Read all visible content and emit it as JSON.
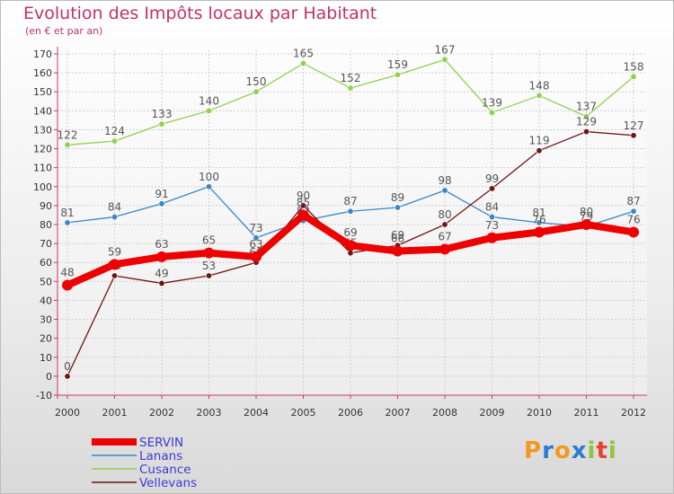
{
  "title": "Evolution des Impôts locaux par Habitant",
  "subtitle": "(en € et par an)",
  "brand": {
    "letters": [
      "P",
      "r",
      "o",
      "x",
      "i",
      "t",
      "i"
    ],
    "colors": [
      "#f39a1e",
      "#2e7ad1",
      "#f39a1e",
      "#2e7ad1",
      "#8cc63e",
      "#e8402f",
      "#8cc63e"
    ]
  },
  "chart_data": {
    "type": "line",
    "categories": [
      "2000",
      "2001",
      "2002",
      "2003",
      "2004",
      "2005",
      "2006",
      "2007",
      "2008",
      "2009",
      "2010",
      "2011",
      "2012"
    ],
    "ylim": [
      -10,
      170
    ],
    "yticks": [
      -10,
      0,
      10,
      20,
      30,
      40,
      50,
      60,
      70,
      80,
      90,
      100,
      110,
      120,
      130,
      140,
      150,
      160,
      170
    ],
    "grid": true,
    "legend_position": "bottom-left",
    "series": [
      {
        "name": "Cusance",
        "color": "#8fd14f",
        "values": [
          122,
          124,
          133,
          140,
          150,
          165,
          152,
          159,
          167,
          139,
          148,
          137,
          158
        ],
        "labels": [
          "122",
          "124",
          "133",
          "140",
          "150",
          "165",
          "152",
          "159",
          "167",
          "139",
          "148",
          "137",
          "158"
        ]
      },
      {
        "name": "Lanans",
        "color": "#3a86c8",
        "values": [
          81,
          84,
          91,
          100,
          73,
          82,
          87,
          89,
          98,
          84,
          81,
          79,
          87
        ],
        "labels": [
          "81",
          "84",
          "91",
          "100",
          "73",
          "82",
          "87",
          "89",
          "98",
          "84",
          "81",
          "79",
          "87"
        ]
      },
      {
        "name": "Vellevans",
        "color": "#6e1414",
        "values": [
          0,
          53,
          49,
          53,
          60,
          90,
          65,
          69,
          80,
          99,
          119,
          129,
          127
        ],
        "labels": [
          "0",
          "53",
          "49",
          "53",
          "60",
          "90",
          "65",
          "69",
          "80",
          "99",
          "119",
          "129",
          "127"
        ]
      },
      {
        "name": "SERVIN",
        "color": "#ee0000",
        "values": [
          48,
          59,
          63,
          65,
          63,
          85,
          69,
          66,
          67,
          73,
          76,
          80,
          76
        ],
        "labels": [
          "48",
          "59",
          "63",
          "65",
          "63",
          "85",
          "69",
          "66",
          "67",
          "73",
          "76",
          "80",
          "76"
        ]
      }
    ]
  }
}
